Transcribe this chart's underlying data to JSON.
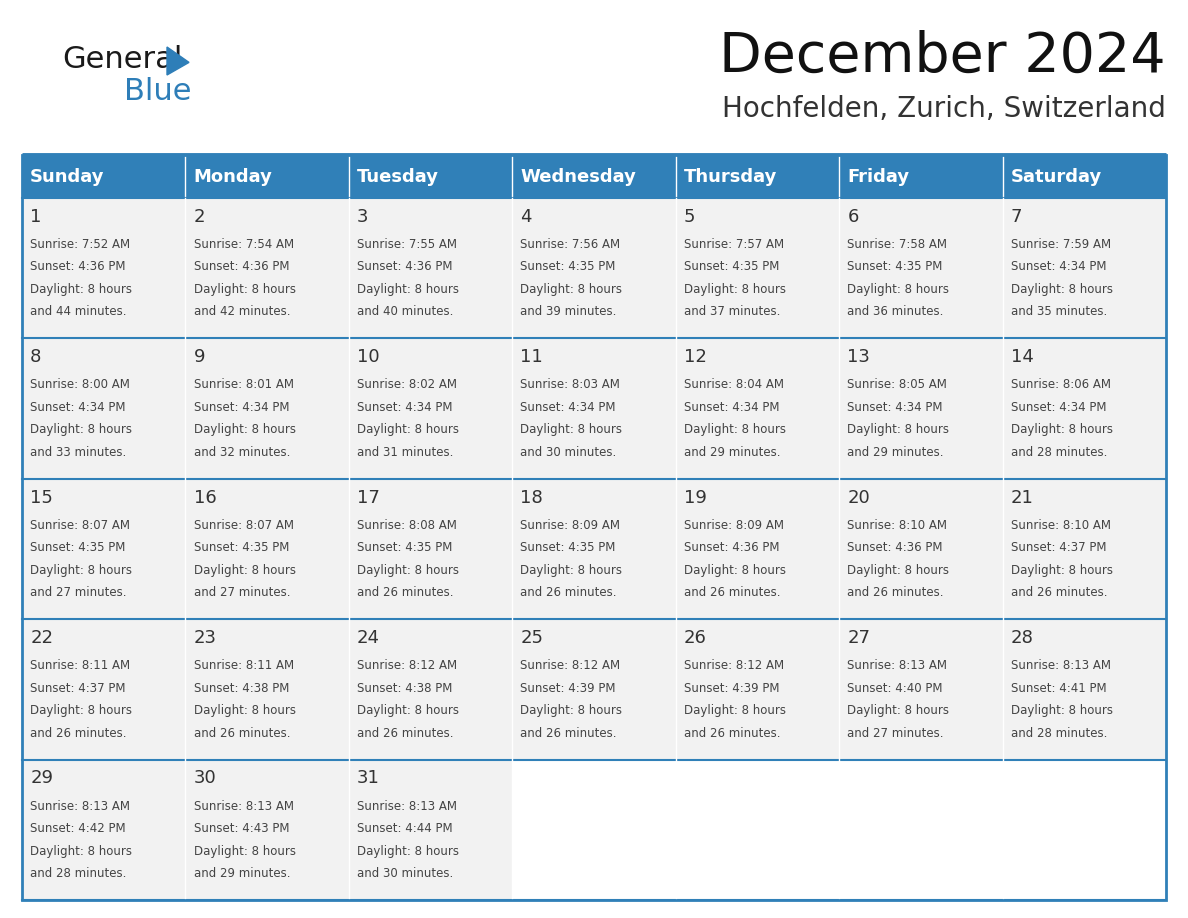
{
  "title": "December 2024",
  "subtitle": "Hochfelden, Zurich, Switzerland",
  "header_color": "#3080B8",
  "header_text_color": "#FFFFFF",
  "grid_line_color": "#3080B8",
  "day_number_color": "#333333",
  "cell_text_color": "#444444",
  "background_color": "#FFFFFF",
  "cell_bg_color": "#F2F2F2",
  "weekdays": [
    "Sunday",
    "Monday",
    "Tuesday",
    "Wednesday",
    "Thursday",
    "Friday",
    "Saturday"
  ],
  "days": [
    {
      "day": 1,
      "col": 0,
      "row": 0,
      "sunrise": "7:52 AM",
      "sunset": "4:36 PM",
      "daylight_hours": 8,
      "daylight_minutes": 44
    },
    {
      "day": 2,
      "col": 1,
      "row": 0,
      "sunrise": "7:54 AM",
      "sunset": "4:36 PM",
      "daylight_hours": 8,
      "daylight_minutes": 42
    },
    {
      "day": 3,
      "col": 2,
      "row": 0,
      "sunrise": "7:55 AM",
      "sunset": "4:36 PM",
      "daylight_hours": 8,
      "daylight_minutes": 40
    },
    {
      "day": 4,
      "col": 3,
      "row": 0,
      "sunrise": "7:56 AM",
      "sunset": "4:35 PM",
      "daylight_hours": 8,
      "daylight_minutes": 39
    },
    {
      "day": 5,
      "col": 4,
      "row": 0,
      "sunrise": "7:57 AM",
      "sunset": "4:35 PM",
      "daylight_hours": 8,
      "daylight_minutes": 37
    },
    {
      "day": 6,
      "col": 5,
      "row": 0,
      "sunrise": "7:58 AM",
      "sunset": "4:35 PM",
      "daylight_hours": 8,
      "daylight_minutes": 36
    },
    {
      "day": 7,
      "col": 6,
      "row": 0,
      "sunrise": "7:59 AM",
      "sunset": "4:34 PM",
      "daylight_hours": 8,
      "daylight_minutes": 35
    },
    {
      "day": 8,
      "col": 0,
      "row": 1,
      "sunrise": "8:00 AM",
      "sunset": "4:34 PM",
      "daylight_hours": 8,
      "daylight_minutes": 33
    },
    {
      "day": 9,
      "col": 1,
      "row": 1,
      "sunrise": "8:01 AM",
      "sunset": "4:34 PM",
      "daylight_hours": 8,
      "daylight_minutes": 32
    },
    {
      "day": 10,
      "col": 2,
      "row": 1,
      "sunrise": "8:02 AM",
      "sunset": "4:34 PM",
      "daylight_hours": 8,
      "daylight_minutes": 31
    },
    {
      "day": 11,
      "col": 3,
      "row": 1,
      "sunrise": "8:03 AM",
      "sunset": "4:34 PM",
      "daylight_hours": 8,
      "daylight_minutes": 30
    },
    {
      "day": 12,
      "col": 4,
      "row": 1,
      "sunrise": "8:04 AM",
      "sunset": "4:34 PM",
      "daylight_hours": 8,
      "daylight_minutes": 29
    },
    {
      "day": 13,
      "col": 5,
      "row": 1,
      "sunrise": "8:05 AM",
      "sunset": "4:34 PM",
      "daylight_hours": 8,
      "daylight_minutes": 29
    },
    {
      "day": 14,
      "col": 6,
      "row": 1,
      "sunrise": "8:06 AM",
      "sunset": "4:34 PM",
      "daylight_hours": 8,
      "daylight_minutes": 28
    },
    {
      "day": 15,
      "col": 0,
      "row": 2,
      "sunrise": "8:07 AM",
      "sunset": "4:35 PM",
      "daylight_hours": 8,
      "daylight_minutes": 27
    },
    {
      "day": 16,
      "col": 1,
      "row": 2,
      "sunrise": "8:07 AM",
      "sunset": "4:35 PM",
      "daylight_hours": 8,
      "daylight_minutes": 27
    },
    {
      "day": 17,
      "col": 2,
      "row": 2,
      "sunrise": "8:08 AM",
      "sunset": "4:35 PM",
      "daylight_hours": 8,
      "daylight_minutes": 26
    },
    {
      "day": 18,
      "col": 3,
      "row": 2,
      "sunrise": "8:09 AM",
      "sunset": "4:35 PM",
      "daylight_hours": 8,
      "daylight_minutes": 26
    },
    {
      "day": 19,
      "col": 4,
      "row": 2,
      "sunrise": "8:09 AM",
      "sunset": "4:36 PM",
      "daylight_hours": 8,
      "daylight_minutes": 26
    },
    {
      "day": 20,
      "col": 5,
      "row": 2,
      "sunrise": "8:10 AM",
      "sunset": "4:36 PM",
      "daylight_hours": 8,
      "daylight_minutes": 26
    },
    {
      "day": 21,
      "col": 6,
      "row": 2,
      "sunrise": "8:10 AM",
      "sunset": "4:37 PM",
      "daylight_hours": 8,
      "daylight_minutes": 26
    },
    {
      "day": 22,
      "col": 0,
      "row": 3,
      "sunrise": "8:11 AM",
      "sunset": "4:37 PM",
      "daylight_hours": 8,
      "daylight_minutes": 26
    },
    {
      "day": 23,
      "col": 1,
      "row": 3,
      "sunrise": "8:11 AM",
      "sunset": "4:38 PM",
      "daylight_hours": 8,
      "daylight_minutes": 26
    },
    {
      "day": 24,
      "col": 2,
      "row": 3,
      "sunrise": "8:12 AM",
      "sunset": "4:38 PM",
      "daylight_hours": 8,
      "daylight_minutes": 26
    },
    {
      "day": 25,
      "col": 3,
      "row": 3,
      "sunrise": "8:12 AM",
      "sunset": "4:39 PM",
      "daylight_hours": 8,
      "daylight_minutes": 26
    },
    {
      "day": 26,
      "col": 4,
      "row": 3,
      "sunrise": "8:12 AM",
      "sunset": "4:39 PM",
      "daylight_hours": 8,
      "daylight_minutes": 26
    },
    {
      "day": 27,
      "col": 5,
      "row": 3,
      "sunrise": "8:13 AM",
      "sunset": "4:40 PM",
      "daylight_hours": 8,
      "daylight_minutes": 27
    },
    {
      "day": 28,
      "col": 6,
      "row": 3,
      "sunrise": "8:13 AM",
      "sunset": "4:41 PM",
      "daylight_hours": 8,
      "daylight_minutes": 28
    },
    {
      "day": 29,
      "col": 0,
      "row": 4,
      "sunrise": "8:13 AM",
      "sunset": "4:42 PM",
      "daylight_hours": 8,
      "daylight_minutes": 28
    },
    {
      "day": 30,
      "col": 1,
      "row": 4,
      "sunrise": "8:13 AM",
      "sunset": "4:43 PM",
      "daylight_hours": 8,
      "daylight_minutes": 29
    },
    {
      "day": 31,
      "col": 2,
      "row": 4,
      "sunrise": "8:13 AM",
      "sunset": "4:44 PM",
      "daylight_hours": 8,
      "daylight_minutes": 30
    }
  ],
  "num_rows": 5,
  "num_cols": 7,
  "logo_text_general": "General",
  "logo_text_blue": "Blue",
  "logo_general_color": "#1a1a1a",
  "logo_blue_color": "#2E7EB8",
  "logo_triangle_color": "#2E7EB8",
  "fig_width": 11.88,
  "fig_height": 9.18,
  "dpi": 100
}
